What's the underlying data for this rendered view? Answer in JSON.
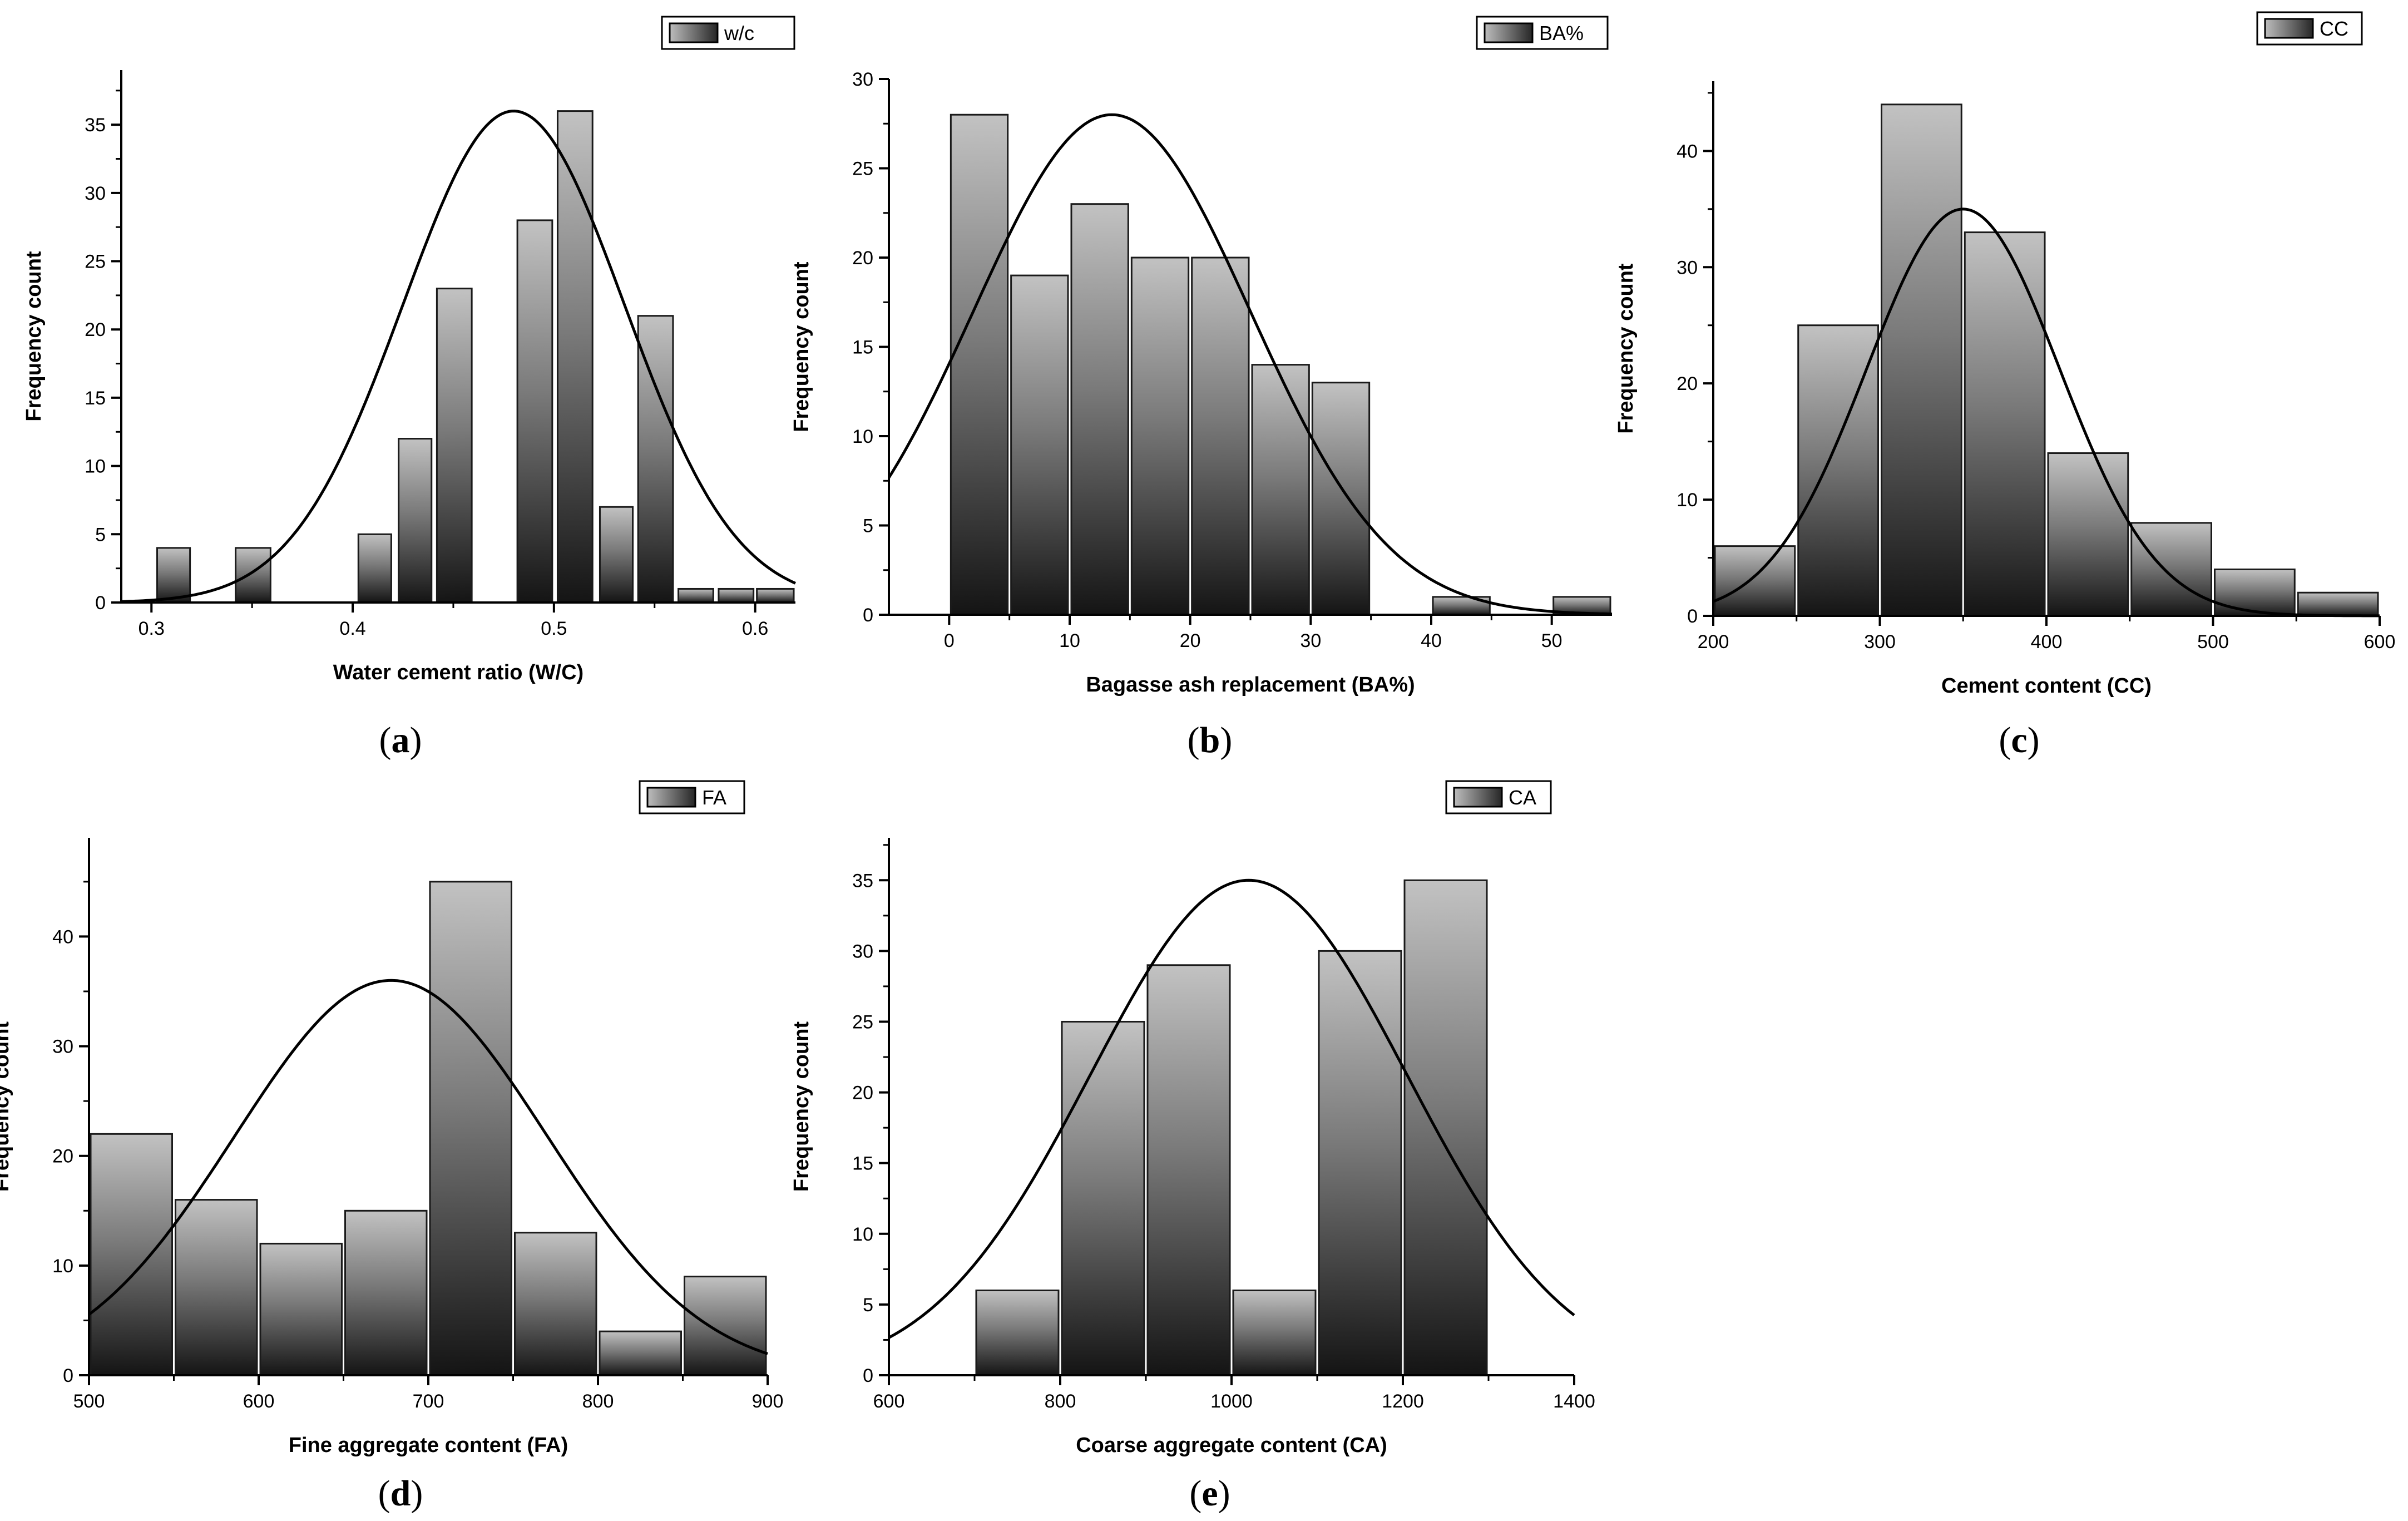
{
  "chart_data": [
    {
      "panel_label": "(a)",
      "type": "bar",
      "subtype": "histogram-with-normal-fit",
      "xlabel": "Water cement ratio (W/C)",
      "ylabel": "Frequency count",
      "legend": "w/c",
      "xlim": [
        0.285,
        0.62
      ],
      "ylim": [
        0,
        39
      ],
      "xticks": [
        0.3,
        0.4,
        0.5,
        0.6
      ],
      "xtick_labels": [
        "0.3",
        "0.4",
        "0.5",
        "0.6"
      ],
      "yticks": [
        0,
        5,
        10,
        15,
        20,
        25,
        30,
        35
      ],
      "bins": [
        {
          "from": 0.302,
          "to": 0.32,
          "count": 4
        },
        {
          "from": 0.341,
          "to": 0.36,
          "count": 4
        },
        {
          "from": 0.402,
          "to": 0.42,
          "count": 5
        },
        {
          "from": 0.422,
          "to": 0.44,
          "count": 12
        },
        {
          "from": 0.441,
          "to": 0.46,
          "count": 23
        },
        {
          "from": 0.481,
          "to": 0.5,
          "count": 28
        },
        {
          "from": 0.501,
          "to": 0.52,
          "count": 36
        },
        {
          "from": 0.522,
          "to": 0.54,
          "count": 7
        },
        {
          "from": 0.541,
          "to": 0.56,
          "count": 21
        },
        {
          "from": 0.561,
          "to": 0.58,
          "count": 1
        },
        {
          "from": 0.581,
          "to": 0.6,
          "count": 1
        },
        {
          "from": 0.6,
          "to": 0.62,
          "count": 1
        }
      ],
      "fit": {
        "mean": 0.48,
        "sd": 0.055,
        "peak": 36
      }
    },
    {
      "panel_label": "(b)",
      "type": "bar",
      "subtype": "histogram-with-normal-fit",
      "xlabel": "Bagasse ash replacement (BA%)",
      "ylabel": "Frequency count",
      "legend": "BA%",
      "xlim": [
        -5,
        55
      ],
      "ylim": [
        0,
        30
      ],
      "xticks": [
        0,
        10,
        20,
        30,
        40,
        50
      ],
      "xtick_labels": [
        "0",
        "10",
        "20",
        "30",
        "40",
        "50"
      ],
      "yticks": [
        0,
        5,
        10,
        15,
        20,
        25,
        30
      ],
      "bins": [
        {
          "from": 0,
          "to": 5,
          "count": 28
        },
        {
          "from": 5,
          "to": 10,
          "count": 19
        },
        {
          "from": 10,
          "to": 15,
          "count": 23
        },
        {
          "from": 15,
          "to": 20,
          "count": 20
        },
        {
          "from": 20,
          "to": 25,
          "count": 20
        },
        {
          "from": 25,
          "to": 30,
          "count": 14
        },
        {
          "from": 30,
          "to": 35,
          "count": 13
        },
        {
          "from": 40,
          "to": 45,
          "count": 1
        },
        {
          "from": 50,
          "to": 55,
          "count": 1
        }
      ],
      "fit": {
        "mean": 13.5,
        "sd": 11.5,
        "peak": 28
      }
    },
    {
      "panel_label": "(c)",
      "type": "bar",
      "subtype": "histogram-with-normal-fit",
      "xlabel": "Cement content (CC)",
      "ylabel": "Frequency count",
      "legend": "CC",
      "xlim": [
        200,
        600
      ],
      "ylim": [
        0,
        46
      ],
      "xticks": [
        200,
        300,
        400,
        500,
        600
      ],
      "xtick_labels": [
        "200",
        "300",
        "400",
        "500",
        "600"
      ],
      "yticks": [
        0,
        10,
        20,
        30,
        40
      ],
      "bins": [
        {
          "from": 200,
          "to": 250,
          "count": 6
        },
        {
          "from": 250,
          "to": 300,
          "count": 25
        },
        {
          "from": 300,
          "to": 350,
          "count": 44
        },
        {
          "from": 350,
          "to": 400,
          "count": 33
        },
        {
          "from": 400,
          "to": 450,
          "count": 14
        },
        {
          "from": 450,
          "to": 500,
          "count": 8
        },
        {
          "from": 500,
          "to": 550,
          "count": 4
        },
        {
          "from": 550,
          "to": 600,
          "count": 2
        }
      ],
      "fit": {
        "mean": 350,
        "sd": 58,
        "peak": 35
      }
    },
    {
      "panel_label": "(d)",
      "type": "bar",
      "subtype": "histogram-with-normal-fit",
      "xlabel": "Fine aggregate content (FA)",
      "ylabel": "Frequency count",
      "legend": "FA",
      "xlim": [
        500,
        900
      ],
      "ylim": [
        0,
        49
      ],
      "xticks": [
        500,
        600,
        700,
        800,
        900
      ],
      "xtick_labels": [
        "500",
        "600",
        "700",
        "800",
        "900"
      ],
      "yticks": [
        0,
        10,
        20,
        30,
        40
      ],
      "bins": [
        {
          "from": 500,
          "to": 550,
          "count": 22
        },
        {
          "from": 550,
          "to": 600,
          "count": 16
        },
        {
          "from": 600,
          "to": 650,
          "count": 12
        },
        {
          "from": 650,
          "to": 700,
          "count": 15
        },
        {
          "from": 700,
          "to": 750,
          "count": 45
        },
        {
          "from": 750,
          "to": 800,
          "count": 13
        },
        {
          "from": 800,
          "to": 850,
          "count": 4
        },
        {
          "from": 850,
          "to": 900,
          "count": 9
        }
      ],
      "fit": {
        "mean": 678,
        "sd": 92,
        "peak": 36
      }
    },
    {
      "panel_label": "(e)",
      "type": "bar",
      "subtype": "histogram-with-normal-fit",
      "xlabel": "Coarse aggregate content (CA)",
      "ylabel": "Frequency count",
      "legend": "CA",
      "xlim": [
        600,
        1400
      ],
      "ylim": [
        0,
        38
      ],
      "xticks": [
        600,
        800,
        1000,
        1200,
        1400
      ],
      "xtick_labels": [
        "600",
        "800",
        "1000",
        "1200",
        "1400"
      ],
      "yticks": [
        0,
        5,
        10,
        15,
        20,
        25,
        30,
        35
      ],
      "bins": [
        {
          "from": 700,
          "to": 800,
          "count": 6
        },
        {
          "from": 800,
          "to": 900,
          "count": 25
        },
        {
          "from": 900,
          "to": 1000,
          "count": 29
        },
        {
          "from": 1000,
          "to": 1100,
          "count": 6
        },
        {
          "from": 1100,
          "to": 1200,
          "count": 30
        },
        {
          "from": 1200,
          "to": 1300,
          "count": 35
        }
      ],
      "fit": {
        "mean": 1020,
        "sd": 185,
        "peak": 35
      }
    }
  ]
}
